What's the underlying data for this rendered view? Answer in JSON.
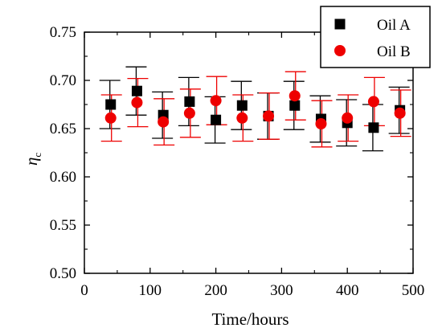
{
  "chart_data": {
    "type": "scatter",
    "xlabel": "Time/hours",
    "ylabel_main": "η",
    "ylabel_sub": "c",
    "xlim": [
      0,
      500
    ],
    "ylim": [
      0.5,
      0.75
    ],
    "x_ticks": [
      0,
      100,
      200,
      300,
      400,
      500
    ],
    "x_tick_labels": [
      "0",
      "100",
      "200",
      "300",
      "400",
      "500"
    ],
    "y_ticks": [
      0.5,
      0.55,
      0.6,
      0.65,
      0.7,
      0.75
    ],
    "y_tick_labels": [
      "0.50",
      "0.55",
      "0.60",
      "0.65",
      "0.70",
      "0.75"
    ],
    "grid": false,
    "legend_position": "top-right",
    "series": [
      {
        "name": "Oil A",
        "marker": "square",
        "color": "#000000",
        "x": [
          40,
          80,
          120,
          160,
          200,
          240,
          280,
          320,
          360,
          400,
          440,
          480
        ],
        "y": [
          0.675,
          0.689,
          0.664,
          0.678,
          0.659,
          0.674,
          0.663,
          0.674,
          0.66,
          0.656,
          0.651,
          0.669
        ],
        "err": [
          0.025,
          0.025,
          0.024,
          0.025,
          0.024,
          0.025,
          0.024,
          0.025,
          0.024,
          0.024,
          0.024,
          0.024
        ]
      },
      {
        "name": "Oil B",
        "marker": "circle",
        "color": "#ee0000",
        "x": [
          40,
          80,
          120,
          160,
          200,
          240,
          280,
          320,
          360,
          400,
          440,
          480
        ],
        "y": [
          0.661,
          0.677,
          0.657,
          0.666,
          0.679,
          0.661,
          0.663,
          0.684,
          0.655,
          0.661,
          0.678,
          0.666
        ],
        "err": [
          0.024,
          0.025,
          0.024,
          0.025,
          0.025,
          0.024,
          0.024,
          0.025,
          0.024,
          0.024,
          0.025,
          0.024
        ]
      }
    ]
  }
}
